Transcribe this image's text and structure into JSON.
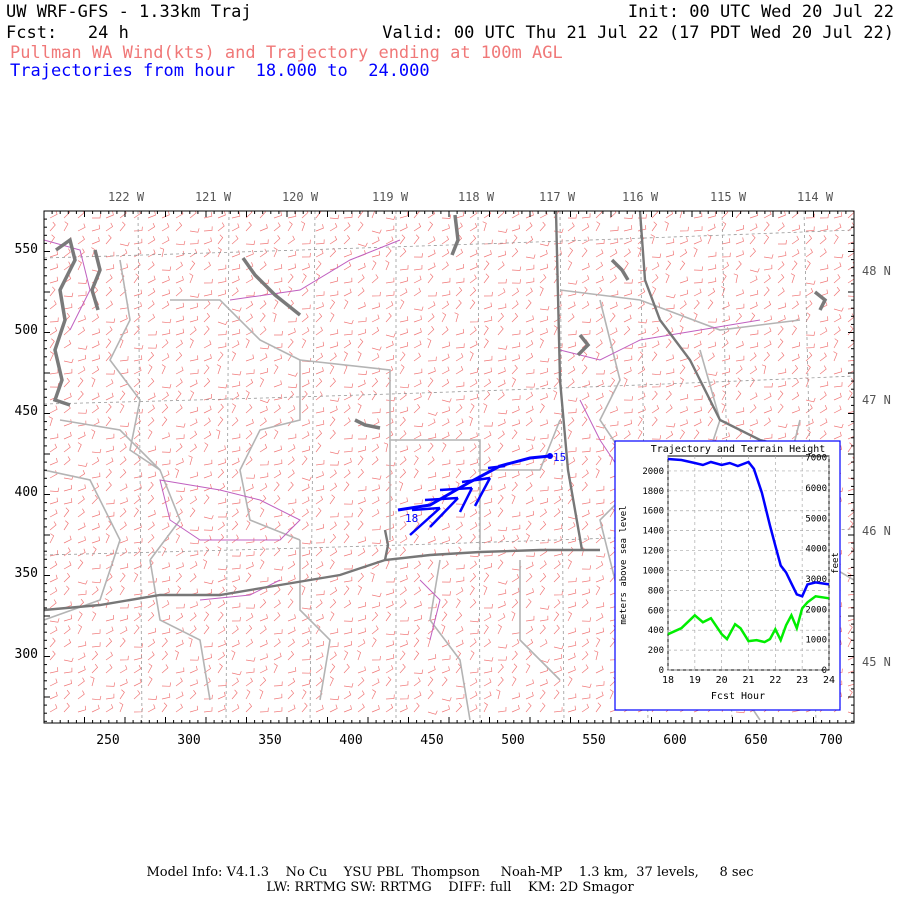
{
  "header": {
    "model_title": "UW WRF-GFS - 1.33km Traj",
    "init": "Init: 00 UTC Wed 20 Jul 22",
    "fcst": "Fcst:   24 h",
    "valid": "Valid: 00 UTC Thu 21 Jul 22 (17 PDT Wed 20 Jul 22)",
    "subtitle": "Pullman WA Wind(kts) and Trajectory ending at 100m AGL",
    "traj_range": "Trajectories from hour  18.000 to  24.000"
  },
  "colors": {
    "wind": "#f07878",
    "traj": "#0000ff",
    "terrain_line": "#00ee00",
    "borders": "#b4b4b4",
    "water": "#7a7a7a",
    "rivers": "#c060c0",
    "coast": "#666666"
  },
  "map": {
    "top_lon_labels": [
      "122 W",
      "121 W",
      "120 W",
      "119 W",
      "118 W",
      "117 W",
      "116 W",
      "115 W",
      "114 W"
    ],
    "right_lat_labels": [
      "48 N",
      "47 N",
      "46 N",
      "45 N"
    ],
    "x_tick_labels": [
      "250",
      "300",
      "350",
      "400",
      "450",
      "500",
      "550",
      "600",
      "650",
      "700"
    ],
    "y_tick_labels": [
      "550",
      "500",
      "450",
      "400",
      "350",
      "300"
    ],
    "traj_start_label": "18",
    "traj_end_label": "15"
  },
  "inset": {
    "title": "Trajectory and Terrain Height",
    "ylabel_left": "meters above sea level",
    "ylabel_right": "feet",
    "xlabel": "Fcst Hour",
    "x_ticks": [
      "18",
      "19",
      "20",
      "21",
      "22",
      "23",
      "24"
    ],
    "y_ticks_m": [
      "0",
      "200",
      "400",
      "600",
      "800",
      "1000",
      "1200",
      "1400",
      "1600",
      "1800",
      "2000"
    ],
    "y_ticks_ft": [
      "0",
      "1000",
      "2000",
      "3000",
      "4000",
      "5000",
      "6000",
      "7000"
    ]
  },
  "chart_data": {
    "type": "line",
    "title": "Trajectory and Terrain Height",
    "xlabel": "Fcst Hour",
    "ylabel": "meters above sea level",
    "xlim": [
      18,
      24
    ],
    "ylim": [
      0,
      2150
    ],
    "series": [
      {
        "name": "",
        "color": "#0000ff",
        "x": [
          18,
          18.5,
          19,
          19.3,
          19.6,
          20,
          20.3,
          20.6,
          21,
          21.2,
          21.5,
          21.8,
          22,
          22.2,
          22.4,
          22.6,
          22.8,
          23,
          23.2,
          23.5,
          24
        ],
        "y": [
          2120,
          2110,
          2080,
          2060,
          2090,
          2060,
          2080,
          2050,
          2090,
          2020,
          1780,
          1450,
          1250,
          1050,
          980,
          870,
          760,
          740,
          860,
          880,
          860
        ]
      },
      {
        "name": "",
        "color": "#00ee00",
        "x": [
          18,
          18.5,
          19,
          19.3,
          19.6,
          20,
          20.2,
          20.5,
          20.7,
          21,
          21.3,
          21.6,
          21.8,
          22,
          22.2,
          22.4,
          22.6,
          22.8,
          23,
          23.2,
          23.5,
          24
        ],
        "y": [
          360,
          420,
          550,
          480,
          520,
          360,
          310,
          460,
          420,
          290,
          300,
          280,
          310,
          410,
          300,
          450,
          550,
          420,
          620,
          680,
          740,
          720
        ]
      }
    ]
  },
  "footer": {
    "line1": "Model Info: V4.1.3    No Cu    YSU PBL  Thompson     Noah-MP    1.3 km,  37 levels,     8 sec",
    "line2": "LW: RRTMG SW: RRTMG    DIFF: full    KM: 2D Smagor"
  }
}
